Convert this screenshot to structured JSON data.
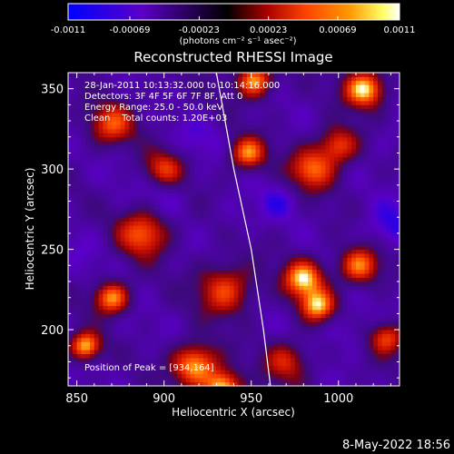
{
  "chart_data": {
    "type": "heatmap",
    "title": "Reconstructed RHESSI Image",
    "xlabel": "Heliocentric X (arcsec)",
    "ylabel": "Heliocentric Y (arcsec)",
    "xlim": [
      845,
      1035
    ],
    "ylim": [
      165,
      360
    ],
    "x_ticks": [
      "850",
      "900",
      "950",
      "1000"
    ],
    "x_tick_values": [
      850,
      900,
      950,
      1000
    ],
    "y_ticks": [
      "200",
      "250",
      "300",
      "350"
    ],
    "y_tick_values": [
      200,
      250,
      300,
      350
    ],
    "colorbar": {
      "ticks": [
        "-0.0011",
        "-0.00069",
        "-0.00023",
        "0.00023",
        "0.00069",
        "0.0011"
      ],
      "tick_values": [
        -0.0011,
        -0.00069,
        -0.00023,
        0.00023,
        0.00069,
        0.0011
      ],
      "range": [
        -0.0011,
        0.0011
      ],
      "unit_label": "(photons cm⁻² s⁻¹ asec⁻²)",
      "colormap": [
        "#0000ff",
        "#5a00c8",
        "#000000",
        "#aa0000",
        "#ff4400",
        "#ff9900",
        "#ffff66",
        "#ffffff"
      ]
    },
    "annotations": [
      "28-Jan-2011 10:13:32.000 to 10:14:16.000",
      "Detectors: 3F 4F 5F 6F 7F 8F, Att 0",
      "Energy Range: 25.0 - 50.0 keV",
      "Clean    Total counts: 1.20E+03"
    ],
    "peak_label": "Position of Peak = [934,164]",
    "peak": [
      934,
      164
    ],
    "limb_curve": [
      [
        930,
        360
      ],
      [
        940,
        300
      ],
      [
        950,
        250
      ],
      [
        957,
        200
      ],
      [
        961,
        165
      ]
    ],
    "hot_spots": [
      {
        "x": 855,
        "y": 190,
        "level": 0.001,
        "r": 6
      },
      {
        "x": 870,
        "y": 220,
        "level": 0.0009,
        "r": 7
      },
      {
        "x": 888,
        "y": 260,
        "level": 0.0007,
        "r": 10
      },
      {
        "x": 918,
        "y": 178,
        "level": 0.001,
        "r": 9
      },
      {
        "x": 934,
        "y": 164,
        "level": 0.0011,
        "r": 7
      },
      {
        "x": 935,
        "y": 225,
        "level": 0.0006,
        "r": 11
      },
      {
        "x": 952,
        "y": 355,
        "level": 0.0009,
        "r": 7
      },
      {
        "x": 980,
        "y": 232,
        "level": 0.001,
        "r": 8
      },
      {
        "x": 988,
        "y": 215,
        "level": 0.0009,
        "r": 7
      },
      {
        "x": 1012,
        "y": 240,
        "level": 0.0008,
        "r": 8
      },
      {
        "x": 1015,
        "y": 350,
        "level": 0.0011,
        "r": 8
      },
      {
        "x": 1028,
        "y": 195,
        "level": 0.0006,
        "r": 7
      },
      {
        "x": 948,
        "y": 310,
        "level": 0.0008,
        "r": 7
      },
      {
        "x": 870,
        "y": 328,
        "level": 0.0006,
        "r": 9
      },
      {
        "x": 985,
        "y": 300,
        "level": 0.0007,
        "r": 9
      },
      {
        "x": 1000,
        "y": 315,
        "level": 0.0006,
        "r": 8
      },
      {
        "x": 900,
        "y": 300,
        "level": 0.0005,
        "r": 8
      },
      {
        "x": 970,
        "y": 180,
        "level": 0.0004,
        "r": 9
      }
    ],
    "cold_spots": [
      {
        "x": 1030,
        "y": 265,
        "level": -0.0008,
        "r": 10
      },
      {
        "x": 1005,
        "y": 200,
        "level": -0.0006,
        "r": 9
      },
      {
        "x": 965,
        "y": 280,
        "level": -0.0007,
        "r": 8
      },
      {
        "x": 900,
        "y": 285,
        "level": -0.0006,
        "r": 9
      },
      {
        "x": 855,
        "y": 250,
        "level": -0.0005,
        "r": 10
      },
      {
        "x": 940,
        "y": 270,
        "level": -0.0005,
        "r": 8
      },
      {
        "x": 920,
        "y": 320,
        "level": -0.0006,
        "r": 9
      },
      {
        "x": 955,
        "y": 205,
        "level": -0.0004,
        "r": 8
      },
      {
        "x": 870,
        "y": 300,
        "level": -0.0004,
        "r": 8
      },
      {
        "x": 1030,
        "y": 320,
        "level": -0.0005,
        "r": 9
      },
      {
        "x": 880,
        "y": 200,
        "level": -0.0004,
        "r": 7
      },
      {
        "x": 935,
        "y": 350,
        "level": -0.0003,
        "r": 9
      }
    ]
  },
  "footer": {
    "date": "8-May-2022 18:56"
  }
}
